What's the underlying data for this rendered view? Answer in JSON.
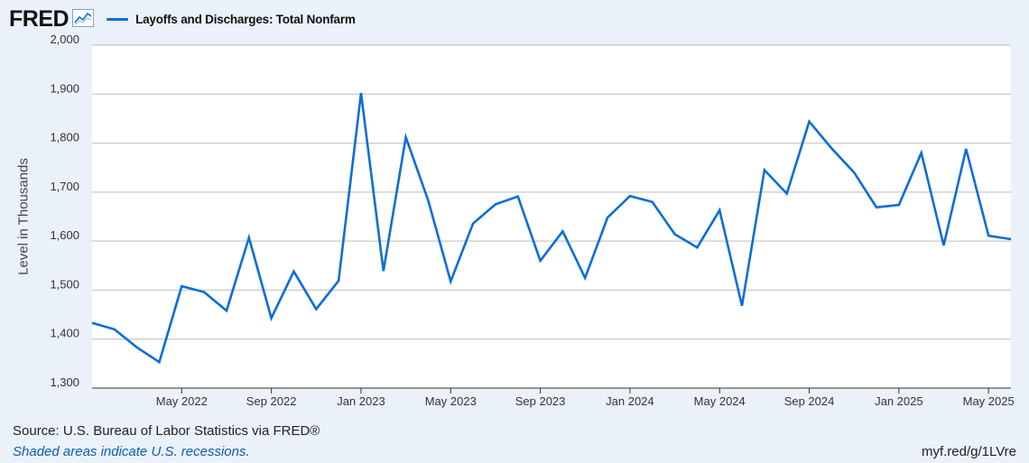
{
  "header": {
    "logo_text": "FRED",
    "legend_label": "Layoffs and Discharges: Total Nonfarm",
    "series_color": "#0b6ed6"
  },
  "footer": {
    "source": "Source: U.S. Bureau of Labor Statistics via FRED®",
    "note": "Shaded areas indicate U.S. recessions.",
    "link": "myf.red/g/1LVre"
  },
  "chart_data": {
    "type": "line",
    "title": "",
    "ylabel": "Level in Thousands",
    "xlabel": "",
    "ylim": [
      1300,
      2000
    ],
    "yticks": [
      {
        "value": 1300,
        "label": "1,300"
      },
      {
        "value": 1400,
        "label": "1,400"
      },
      {
        "value": 1500,
        "label": "1,500"
      },
      {
        "value": 1600,
        "label": "1,600"
      },
      {
        "value": 1700,
        "label": "1,700"
      },
      {
        "value": 1800,
        "label": "1,800"
      },
      {
        "value": 1900,
        "label": "1,900"
      },
      {
        "value": 2000,
        "label": "2,000"
      }
    ],
    "xrange": [
      "2022-01",
      "2025-06"
    ],
    "xticks": [
      {
        "month": "2022-05",
        "label": "May 2022"
      },
      {
        "month": "2022-09",
        "label": "Sep 2022"
      },
      {
        "month": "2023-01",
        "label": "Jan 2023"
      },
      {
        "month": "2023-05",
        "label": "May 2023"
      },
      {
        "month": "2023-09",
        "label": "Sep 2023"
      },
      {
        "month": "2024-01",
        "label": "Jan 2024"
      },
      {
        "month": "2024-05",
        "label": "May 2024"
      },
      {
        "month": "2024-09",
        "label": "Sep 2024"
      },
      {
        "month": "2025-01",
        "label": "Jan 2025"
      },
      {
        "month": "2025-05",
        "label": "May 2025"
      }
    ],
    "grid": true,
    "legend": "top-left",
    "series": [
      {
        "name": "Layoffs and Discharges: Total Nonfarm",
        "color": "#0b6ed6",
        "x": [
          "2022-01",
          "2022-02",
          "2022-03",
          "2022-04",
          "2022-05",
          "2022-06",
          "2022-07",
          "2022-08",
          "2022-09",
          "2022-10",
          "2022-11",
          "2022-12",
          "2023-01",
          "2023-02",
          "2023-03",
          "2023-04",
          "2023-05",
          "2023-06",
          "2023-07",
          "2023-08",
          "2023-09",
          "2023-10",
          "2023-11",
          "2023-12",
          "2024-01",
          "2024-02",
          "2024-03",
          "2024-04",
          "2024-05",
          "2024-06",
          "2024-07",
          "2024-08",
          "2024-09",
          "2024-10",
          "2024-11",
          "2024-12",
          "2025-01",
          "2025-02",
          "2025-03",
          "2025-04",
          "2025-05",
          "2025-06"
        ],
        "values": [
          1433,
          1420,
          1383,
          1353,
          1508,
          1496,
          1458,
          1607,
          1443,
          1538,
          1461,
          1519,
          1902,
          1539,
          1812,
          1683,
          1518,
          1636,
          1675,
          1691,
          1560,
          1620,
          1525,
          1648,
          1692,
          1680,
          1614,
          1587,
          1663,
          1468,
          1745,
          1697,
          1844,
          1789,
          1740,
          1669,
          1674,
          1780,
          1591,
          1788,
          1611,
          1604
        ]
      }
    ]
  }
}
